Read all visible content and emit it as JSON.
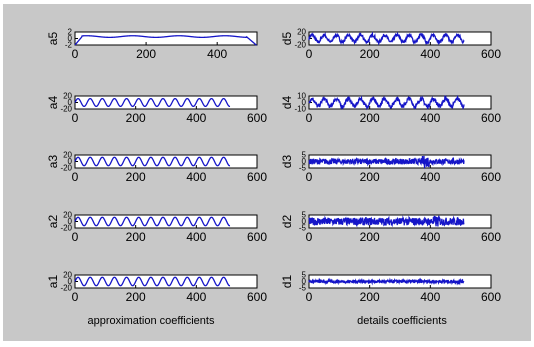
{
  "figure": {
    "left_column_label": "approximation coefficients",
    "right_column_label": "details coefficients"
  },
  "colors": {
    "background": "#c8c8c8",
    "axes_face": "#ffffff",
    "line": "#1515c8"
  },
  "chart_data": [
    {
      "type": "line",
      "ylabel": "a5",
      "xlim": [
        0,
        512
      ],
      "ylim": [
        -2,
        2
      ],
      "xticks": [
        0,
        200,
        400
      ],
      "yticks": [
        -2,
        0,
        2
      ],
      "ytick_labels": [
        "-2",
        "0",
        "2"
      ],
      "series": {
        "kind": "trend",
        "length": 512,
        "base": 0.6,
        "start": -2,
        "end": -2.2,
        "wave_amplitude": 0.25,
        "wave_period": 130
      }
    },
    {
      "type": "line",
      "ylabel": "d5",
      "xlim": [
        0,
        600
      ],
      "ylim": [
        -20,
        20
      ],
      "xticks": [
        0,
        200,
        400,
        600
      ],
      "yticks": [
        -20,
        0,
        20
      ],
      "ytick_labels": [
        "-20",
        "0",
        "20"
      ],
      "series": {
        "kind": "wave",
        "length": 512,
        "amplitude": 11,
        "period": 40,
        "noise": 5
      }
    },
    {
      "type": "line",
      "ylabel": "a4",
      "xlim": [
        0,
        600
      ],
      "ylim": [
        -20,
        20
      ],
      "xticks": [
        0,
        200,
        400,
        600
      ],
      "yticks": [
        -20,
        0,
        20
      ],
      "ytick_labels": [
        "-20",
        "0",
        "20"
      ],
      "series": {
        "kind": "sine",
        "length": 512,
        "amplitude": 12,
        "period": 40
      }
    },
    {
      "type": "line",
      "ylabel": "d4",
      "xlim": [
        0,
        600
      ],
      "ylim": [
        -10,
        10
      ],
      "xticks": [
        0,
        200,
        400,
        600
      ],
      "yticks": [
        -10,
        0,
        10
      ],
      "ytick_labels": [
        "-10",
        "0",
        "10"
      ],
      "series": {
        "kind": "wave",
        "length": 512,
        "amplitude": 6,
        "period": 40,
        "noise": 3
      }
    },
    {
      "type": "line",
      "ylabel": "a3",
      "xlim": [
        0,
        600
      ],
      "ylim": [
        -20,
        20
      ],
      "xticks": [
        0,
        200,
        400,
        600
      ],
      "yticks": [
        -20,
        0,
        20
      ],
      "ytick_labels": [
        "-20",
        "0",
        "20"
      ],
      "series": {
        "kind": "sine",
        "length": 512,
        "amplitude": 13,
        "period": 40
      }
    },
    {
      "type": "line",
      "ylabel": "d3",
      "xlim": [
        0,
        600
      ],
      "ylim": [
        -5,
        5
      ],
      "xticks": [
        0,
        200,
        400,
        600
      ],
      "yticks": [
        -5,
        0,
        5
      ],
      "ytick_labels": [
        "-5",
        "0",
        "5"
      ],
      "series": {
        "kind": "noise",
        "length": 512,
        "amplitude": 2.2,
        "burst_at": 385,
        "burst_amplitude": 4.5
      }
    },
    {
      "type": "line",
      "ylabel": "a2",
      "xlim": [
        0,
        600
      ],
      "ylim": [
        -20,
        20
      ],
      "xticks": [
        0,
        200,
        400,
        600
      ],
      "yticks": [
        -20,
        0,
        20
      ],
      "ytick_labels": [
        "-20",
        "0",
        "20"
      ],
      "series": {
        "kind": "sine",
        "length": 512,
        "amplitude": 13,
        "period": 40
      }
    },
    {
      "type": "line",
      "ylabel": "d2",
      "xlim": [
        0,
        600
      ],
      "ylim": [
        -5,
        5
      ],
      "xticks": [
        0,
        200,
        400,
        600
      ],
      "yticks": [
        -5,
        0,
        5
      ],
      "ytick_labels": [
        "-5",
        "0",
        "5"
      ],
      "series": {
        "kind": "noise",
        "length": 512,
        "amplitude": 3,
        "burst_at": 420,
        "burst_amplitude": 4.5
      }
    },
    {
      "type": "line",
      "ylabel": "a1",
      "xlim": [
        0,
        600
      ],
      "ylim": [
        -20,
        20
      ],
      "xticks": [
        0,
        200,
        400,
        600
      ],
      "yticks": [
        -20,
        0,
        20
      ],
      "ytick_labels": [
        "-20",
        "0",
        "20"
      ],
      "series": {
        "kind": "sine",
        "length": 512,
        "amplitude": 13,
        "period": 40
      }
    },
    {
      "type": "line",
      "ylabel": "d1",
      "xlim": [
        0,
        600
      ],
      "ylim": [
        -5,
        5
      ],
      "xticks": [
        0,
        200,
        400,
        600
      ],
      "yticks": [
        -5,
        0,
        5
      ],
      "ytick_labels": [
        "-5",
        "0",
        "5"
      ],
      "series": {
        "kind": "noise",
        "length": 512,
        "amplitude": 1.2,
        "burst_at": -1,
        "burst_amplitude": 0
      }
    }
  ]
}
